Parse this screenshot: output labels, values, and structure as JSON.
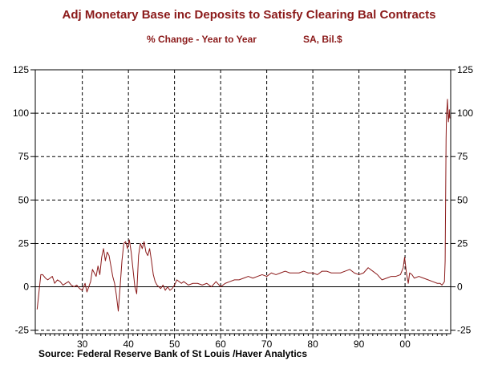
{
  "title": "Adj Monetary Base inc Deposits to Satisfy Clearing Bal Contracts",
  "subtitle_left": "% Change - Year to Year",
  "subtitle_right": "SA, Bil.$",
  "source": "Source:  Federal Reserve Bank of St Louis /Haver Analytics",
  "colors": {
    "series": "#8b1a1a",
    "title": "#8b1a1a",
    "grid": "#000000"
  },
  "chart_data": {
    "type": "line",
    "title": "Adj Monetary Base inc Deposits to Satisfy Clearing Bal Contracts",
    "subtitle": "% Change - Year to Year   SA, Bil.$",
    "xlabel": "",
    "ylabel": "",
    "xlim": [
      1919.8,
      2009.9
    ],
    "ylim": [
      -27,
      125
    ],
    "x_tick_values": [
      1930,
      1940,
      1950,
      1960,
      1970,
      1980,
      1990,
      2000
    ],
    "x_tick_labels": [
      "30",
      "40",
      "50",
      "60",
      "70",
      "80",
      "90",
      "00"
    ],
    "y_ticks_left": [
      -25,
      0,
      25,
      50,
      75,
      100,
      125
    ],
    "y_ticks_right": [
      -25,
      0,
      25,
      50,
      75,
      100,
      125
    ],
    "grid": true,
    "series": [
      {
        "name": "Adj Monetary Base % Change Y/Y",
        "x": [
          1920.2,
          1920.6,
          1921.0,
          1921.4,
          1922.0,
          1922.5,
          1923.0,
          1923.5,
          1924.0,
          1924.6,
          1925.2,
          1925.8,
          1926.4,
          1927.0,
          1927.6,
          1928.2,
          1928.8,
          1929.4,
          1930.0,
          1930.6,
          1931.0,
          1931.4,
          1931.8,
          1932.2,
          1932.6,
          1933.0,
          1933.4,
          1933.8,
          1934.2,
          1934.6,
          1935.0,
          1935.4,
          1935.8,
          1936.2,
          1936.6,
          1937.0,
          1937.4,
          1937.8,
          1938.2,
          1938.6,
          1939.0,
          1939.4,
          1939.8,
          1940.2,
          1940.6,
          1941.0,
          1941.4,
          1941.8,
          1942.2,
          1942.6,
          1943.0,
          1943.4,
          1943.8,
          1944.2,
          1944.6,
          1945.0,
          1945.4,
          1945.8,
          1946.2,
          1946.6,
          1947.0,
          1947.5,
          1948.0,
          1948.5,
          1949.0,
          1949.5,
          1950.0,
          1950.5,
          1951.0,
          1951.5,
          1952.0,
          1953.0,
          1954.0,
          1955.0,
          1956.0,
          1957.0,
          1958.0,
          1959.0,
          1960.0,
          1961.0,
          1962.0,
          1963.0,
          1964.0,
          1965.0,
          1966.0,
          1967.0,
          1968.0,
          1969.0,
          1970.0,
          1971.0,
          1972.0,
          1973.0,
          1974.0,
          1975.0,
          1976.0,
          1977.0,
          1978.0,
          1979.0,
          1980.0,
          1981.0,
          1982.0,
          1983.0,
          1984.0,
          1985.0,
          1986.0,
          1987.0,
          1988.0,
          1989.0,
          1990.0,
          1991.0,
          1992.0,
          1993.0,
          1994.0,
          1995.0,
          1996.0,
          1997.0,
          1998.0,
          1999.0,
          1999.6,
          1999.9,
          2000.3,
          2000.7,
          2001.0,
          2001.5,
          2002.0,
          2003.0,
          2004.0,
          2005.0,
          2006.0,
          2007.0,
          2007.6,
          2008.0,
          2008.3,
          2008.55,
          2008.7,
          2008.8,
          2008.9,
          2009.0,
          2009.1,
          2009.2,
          2009.3,
          2009.4,
          2009.5,
          2009.6,
          2009.7
        ],
        "values": [
          -13,
          -3,
          7,
          7,
          5,
          4,
          5,
          6,
          2,
          4,
          3,
          1,
          2,
          3,
          1,
          0,
          1,
          -1,
          -2,
          2,
          -3,
          0,
          3,
          10,
          8,
          6,
          12,
          7,
          17,
          22,
          15,
          20,
          18,
          12,
          6,
          2,
          -5,
          -14,
          0,
          15,
          25,
          26,
          22,
          27,
          20,
          10,
          0,
          -4,
          18,
          25,
          22,
          26,
          20,
          18,
          22,
          15,
          7,
          3,
          1,
          0,
          -1,
          1,
          -2,
          0,
          -2,
          -1,
          1,
          4,
          3,
          2,
          3,
          1,
          2,
          2,
          1,
          2,
          0,
          3,
          0,
          2,
          3,
          4,
          4,
          5,
          6,
          5,
          6,
          7,
          6,
          8,
          7,
          8,
          9,
          8,
          8,
          8,
          9,
          8,
          8,
          7,
          9,
          9,
          8,
          8,
          8,
          9,
          10,
          8,
          7,
          8,
          11,
          9,
          7,
          4,
          5,
          6,
          6,
          7,
          11,
          17,
          8,
          2,
          8,
          7,
          5,
          6,
          5,
          4,
          3,
          2,
          2,
          1,
          2,
          3,
          15,
          50,
          85,
          100,
          103,
          108,
          100,
          95,
          98,
          102,
          97
        ]
      }
    ],
    "legend": null
  }
}
